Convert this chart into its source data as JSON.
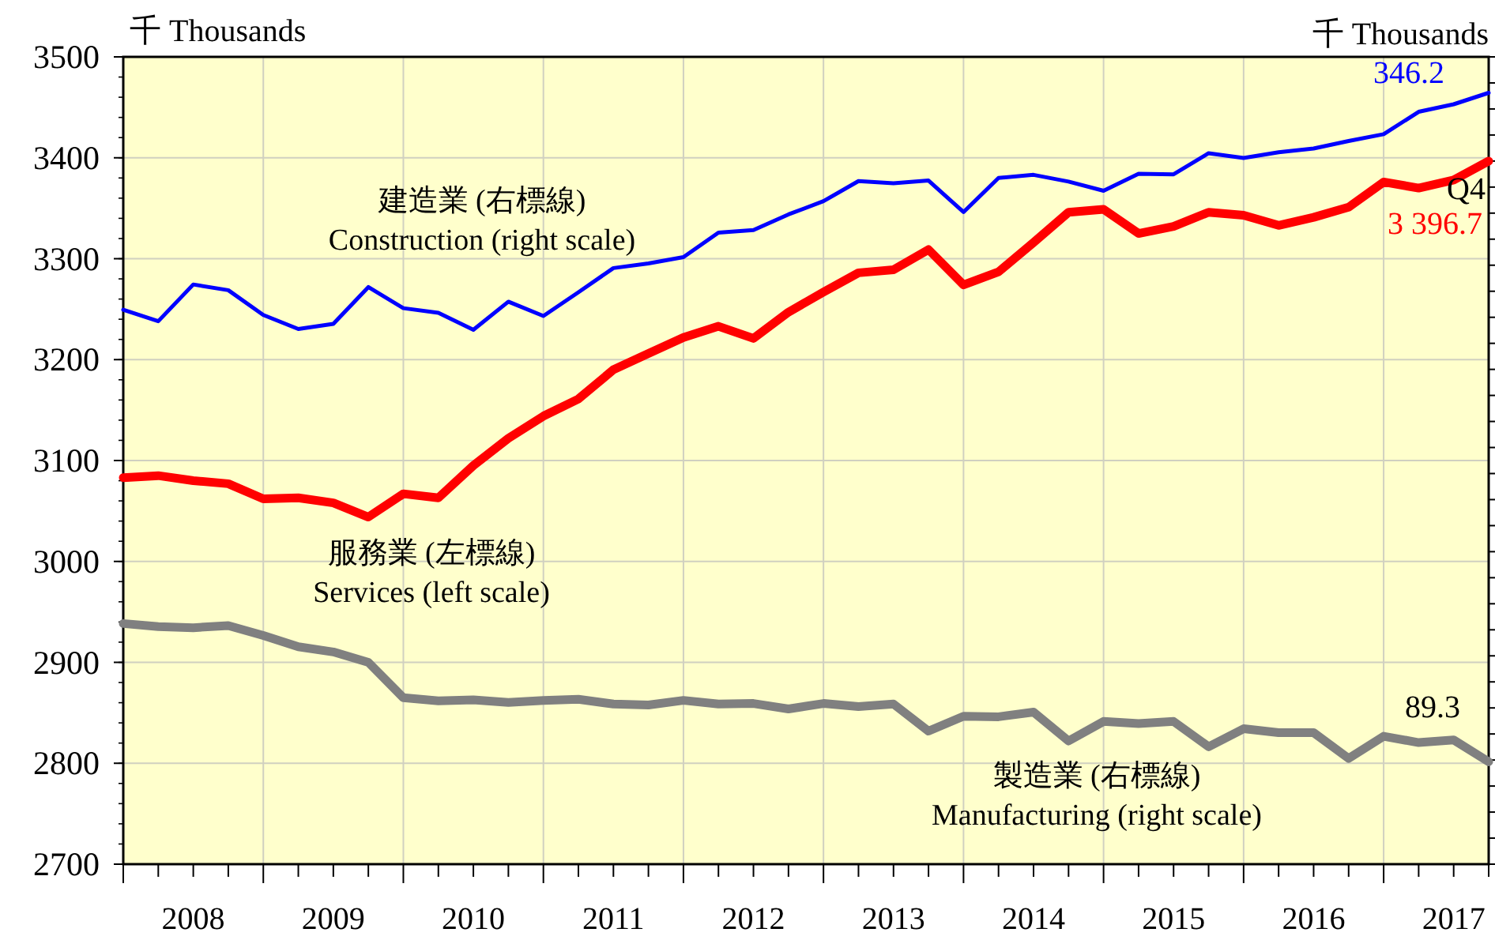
{
  "chart_data": {
    "type": "line",
    "ylabel": "千 Thousands",
    "y2label": "千 Thousands",
    "x": [
      "2008-01",
      "2008-04",
      "2008-07",
      "2008-10",
      "2009-01",
      "2009-04",
      "2009-07",
      "2009-10",
      "2010-01",
      "2010-04",
      "2010-07",
      "2010-10",
      "2011-01",
      "2011-04",
      "2011-07",
      "2011-10",
      "2012-01",
      "2012-04",
      "2012-07",
      "2012-10",
      "2013-01",
      "2013-04",
      "2013-07",
      "2013-10",
      "2014-01",
      "2014-04",
      "2014-07",
      "2014-10",
      "2015-01",
      "2015-04",
      "2015-07",
      "2015-10",
      "2016-01",
      "2016-04",
      "2016-07",
      "2016-10",
      "2017-01",
      "2017-04",
      "2017-07",
      "2017-10"
    ],
    "series": [
      {
        "name": "建造業 (右標線)\nConstruction (right scale)",
        "color": "#0000ff",
        "axis": "y2",
        "values": [
          262.9,
          258.5,
          272.6,
          270.4,
          260.9,
          255.5,
          257.5,
          271.6,
          263.5,
          261.7,
          255.2,
          266.0,
          260.5,
          269.6,
          278.9,
          280.7,
          283.1,
          292.5,
          293.5,
          299.5,
          304.6,
          312.3,
          311.5,
          312.5,
          300.4,
          313.5,
          314.7,
          312.1,
          308.6,
          315.1,
          314.9,
          323.0,
          321.2,
          323.4,
          324.8,
          327.7,
          330.3,
          338.9,
          341.8,
          346.2
        ],
        "value_labels": [
          null,
          null,
          null,
          null,
          null,
          null,
          null,
          null,
          null,
          null,
          null,
          null,
          null,
          null,
          null,
          null,
          null,
          null,
          null,
          null,
          null,
          null,
          null,
          null,
          null,
          null,
          null,
          null,
          null,
          null,
          null,
          null,
          null,
          null,
          null,
          null,
          null,
          null,
          null,
          "346.2"
        ]
      },
      {
        "name": "服務業 (左標線)\nServices (left scale)",
        "color": "#ff0000",
        "axis": "y",
        "values": [
          3083,
          3085,
          3080,
          3077,
          3062,
          3063,
          3058,
          3044,
          3067,
          3063,
          3095,
          3122,
          3144,
          3161,
          3190,
          3206,
          3222,
          3233,
          3221,
          3247,
          3267,
          3286,
          3289,
          3309,
          3274,
          3287,
          3316,
          3346,
          3349,
          3325,
          3332,
          3346,
          3343,
          3333,
          3341,
          3351,
          3376,
          3370,
          3378,
          3396.7
        ],
        "value_labels": [
          null,
          null,
          null,
          null,
          null,
          null,
          null,
          null,
          null,
          null,
          null,
          null,
          null,
          null,
          null,
          null,
          null,
          null,
          null,
          null,
          null,
          null,
          null,
          null,
          null,
          null,
          null,
          null,
          null,
          null,
          null,
          null,
          null,
          null,
          null,
          null,
          null,
          null,
          null,
          "3 396.7"
        ]
      },
      {
        "name": "製造業 (右標線)\nManufacturing (right scale)",
        "color": "#808080",
        "axis": "y2",
        "values": [
          142.4,
          141.2,
          140.8,
          141.6,
          137.8,
          133.5,
          131.5,
          127.5,
          113.9,
          112.7,
          113.1,
          112.1,
          112.9,
          113.3,
          111.5,
          111.1,
          112.9,
          111.5,
          111.7,
          109.6,
          111.7,
          110.5,
          111.5,
          101.1,
          106.8,
          106.6,
          108.4,
          97.3,
          104.8,
          104.0,
          104.8,
          95.1,
          102.0,
          100.5,
          100.5,
          90.6,
          99.1,
          96.7,
          97.7,
          89.3
        ],
        "value_labels": [
          null,
          null,
          null,
          null,
          null,
          null,
          null,
          null,
          null,
          null,
          null,
          null,
          null,
          null,
          null,
          null,
          null,
          null,
          null,
          null,
          null,
          null,
          null,
          null,
          null,
          null,
          null,
          null,
          null,
          null,
          null,
          null,
          null,
          null,
          null,
          null,
          null,
          null,
          null,
          "89.3"
        ]
      }
    ],
    "annotations": [
      {
        "text": "Q4",
        "x": "2017-10",
        "y": 3396.7
      }
    ],
    "xlim": [
      "2008-01",
      "2017-10"
    ],
    "xticks": [
      {
        "value": "2008-01",
        "label": null
      },
      {
        "value": "2008-04",
        "label": null
      },
      {
        "value": "2008-07",
        "label": "2008"
      },
      {
        "value": "2008-10",
        "label": null
      },
      {
        "value": "2009-01",
        "label": null
      },
      {
        "value": "2009-04",
        "label": null
      },
      {
        "value": "2009-07",
        "label": "2009"
      },
      {
        "value": "2009-10",
        "label": null
      },
      {
        "value": "2010-01",
        "label": null
      },
      {
        "value": "2010-04",
        "label": null
      },
      {
        "value": "2010-07",
        "label": "2010"
      },
      {
        "value": "2010-10",
        "label": null
      },
      {
        "value": "2011-01",
        "label": null
      },
      {
        "value": "2011-04",
        "label": null
      },
      {
        "value": "2011-07",
        "label": "2011"
      },
      {
        "value": "2011-10",
        "label": null
      },
      {
        "value": "2012-01",
        "label": null
      },
      {
        "value": "2012-04",
        "label": null
      },
      {
        "value": "2012-07",
        "label": "2012"
      },
      {
        "value": "2012-10",
        "label": null
      },
      {
        "value": "2013-01",
        "label": null
      },
      {
        "value": "2013-04",
        "label": null
      },
      {
        "value": "2013-07",
        "label": "2013"
      },
      {
        "value": "2013-10",
        "label": null
      },
      {
        "value": "2014-01",
        "label": null
      },
      {
        "value": "2014-04",
        "label": null
      },
      {
        "value": "2014-07",
        "label": "2014"
      },
      {
        "value": "2014-10",
        "label": null
      },
      {
        "value": "2015-01",
        "label": null
      },
      {
        "value": "2015-04",
        "label": null
      },
      {
        "value": "2015-07",
        "label": "2015"
      },
      {
        "value": "2015-10",
        "label": null
      },
      {
        "value": "2016-01",
        "label": null
      },
      {
        "value": "2016-04",
        "label": null
      },
      {
        "value": "2016-07",
        "label": "2016"
      },
      {
        "value": "2016-10",
        "label": null
      },
      {
        "value": "2017-01",
        "label": null
      },
      {
        "value": "2017-04",
        "label": null
      },
      {
        "value": "2017-07",
        "label": "2017"
      },
      {
        "value": "2017-10",
        "label": null
      }
    ],
    "ylim": [
      2700,
      3500
    ],
    "yticks": [
      2700,
      2800,
      2900,
      3000,
      3100,
      3200,
      3300,
      3400,
      3500
    ],
    "y2lim": [
      50,
      360
    ],
    "y2ticks": [
      {
        "value": 50,
        "label": null
      },
      {
        "value": 60,
        "label": null
      },
      {
        "value": 70,
        "label": null
      },
      {
        "value": 80,
        "label": null
      },
      {
        "value": 90,
        "label": null
      },
      {
        "value": 100,
        "label": null
      },
      {
        "value": 110,
        "label": null
      },
      {
        "value": 120,
        "label": null
      },
      {
        "value": 130,
        "label": null
      },
      {
        "value": 140,
        "label": null
      },
      {
        "value": 150,
        "label": null
      },
      {
        "value": 160,
        "label": null
      },
      {
        "value": 170,
        "label": null
      },
      {
        "value": 180,
        "label": null
      },
      {
        "value": 190,
        "label": null
      },
      {
        "value": 200,
        "label": null
      },
      {
        "value": 210,
        "label": null
      },
      {
        "value": 220,
        "label": null
      },
      {
        "value": 230,
        "label": null
      },
      {
        "value": 240,
        "label": null
      },
      {
        "value": 250,
        "label": null
      },
      {
        "value": 260,
        "label": null
      },
      {
        "value": 270,
        "label": null
      },
      {
        "value": 280,
        "label": null
      },
      {
        "value": 290,
        "label": null
      },
      {
        "value": 300,
        "label": null
      },
      {
        "value": 310,
        "label": null
      },
      {
        "value": 320,
        "label": null
      },
      {
        "value": 330,
        "label": null
      },
      {
        "value": 340,
        "label": null
      },
      {
        "value": 350,
        "label": null
      },
      {
        "value": 360,
        "label": null
      }
    ],
    "tick_labels": "xy",
    "grid": true,
    "marker": "none",
    "line_style": "solid"
  }
}
